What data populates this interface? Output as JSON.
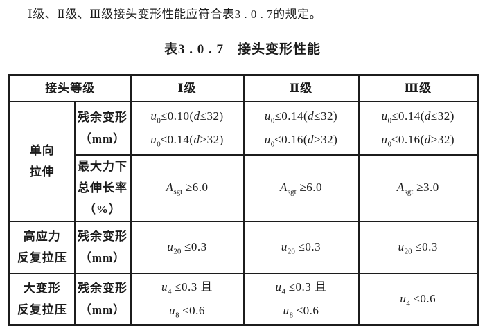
{
  "theme": {
    "ink": "#1c1c1c",
    "paper": "#ffffff"
  },
  "page": {
    "intro_text": "Ⅰ级、Ⅱ级、Ⅲ级接头变形性能应符合表3 . 0 . 7的规定。",
    "table_title": "表3 . 0 . 7　接头变形性能"
  },
  "table": {
    "header": {
      "joint_grade": "接头等级",
      "grade1": "Ⅰ级",
      "grade2": "Ⅱ级",
      "grade3": "Ⅲ级"
    },
    "groups": {
      "uniaxial": [
        "单向",
        "拉伸"
      ],
      "high_stress": [
        "高应力",
        "反复拉压"
      ],
      "large_deform": [
        "大变形",
        "反复拉压"
      ]
    },
    "items": {
      "residual_uniaxial": [
        "残余变形",
        "（mm）"
      ],
      "elongation": [
        "最大力下",
        "总伸长率",
        "（%）"
      ],
      "residual_high_stress": [
        "残余变形",
        "（mm）"
      ],
      "residual_large_deform": [
        "残余变形",
        "（mm）"
      ]
    },
    "values": {
      "uniaxial_residual": {
        "grade1": [
          "<i>u</i><sub>0</sub>≤0.10(<i>d</i>≤32)",
          "<i>u</i><sub>0</sub>≤0.14(<i>d</i>>32)"
        ],
        "grade2": [
          "<i>u</i><sub>0</sub>≤0.14(<i>d</i>≤32)",
          "<i>u</i><sub>0</sub>≤0.16(<i>d</i>>32)"
        ],
        "grade3": [
          "<i>u</i><sub>0</sub>≤0.14(<i>d</i>≤32)",
          "<i>u</i><sub>0</sub>≤0.16(<i>d</i>>32)"
        ]
      },
      "elongation": {
        "grade1": [
          "<i>A</i><sub>sgt</sub> ≥6.0"
        ],
        "grade2": [
          "<i>A</i><sub>sgt</sub> ≥6.0"
        ],
        "grade3": [
          "<i>A</i><sub>sgt</sub> ≥3.0"
        ]
      },
      "high_stress_residual": {
        "grade1": [
          "<i>u</i><sub>20</sub> ≤0.3"
        ],
        "grade2": [
          "<i>u</i><sub>20</sub> ≤0.3"
        ],
        "grade3": [
          "<i>u</i><sub>20</sub> ≤0.3"
        ]
      },
      "large_deform_residual": {
        "grade1": [
          "<i>u</i><sub>4</sub> ≤0.3 且",
          "<i>u</i><sub>8</sub> ≤0.6"
        ],
        "grade2": [
          "<i>u</i><sub>4</sub> ≤0.3 且",
          "<i>u</i><sub>8</sub> ≤0.6"
        ],
        "grade3": [
          "<i>u</i><sub>4</sub> ≤0.6"
        ]
      }
    }
  }
}
